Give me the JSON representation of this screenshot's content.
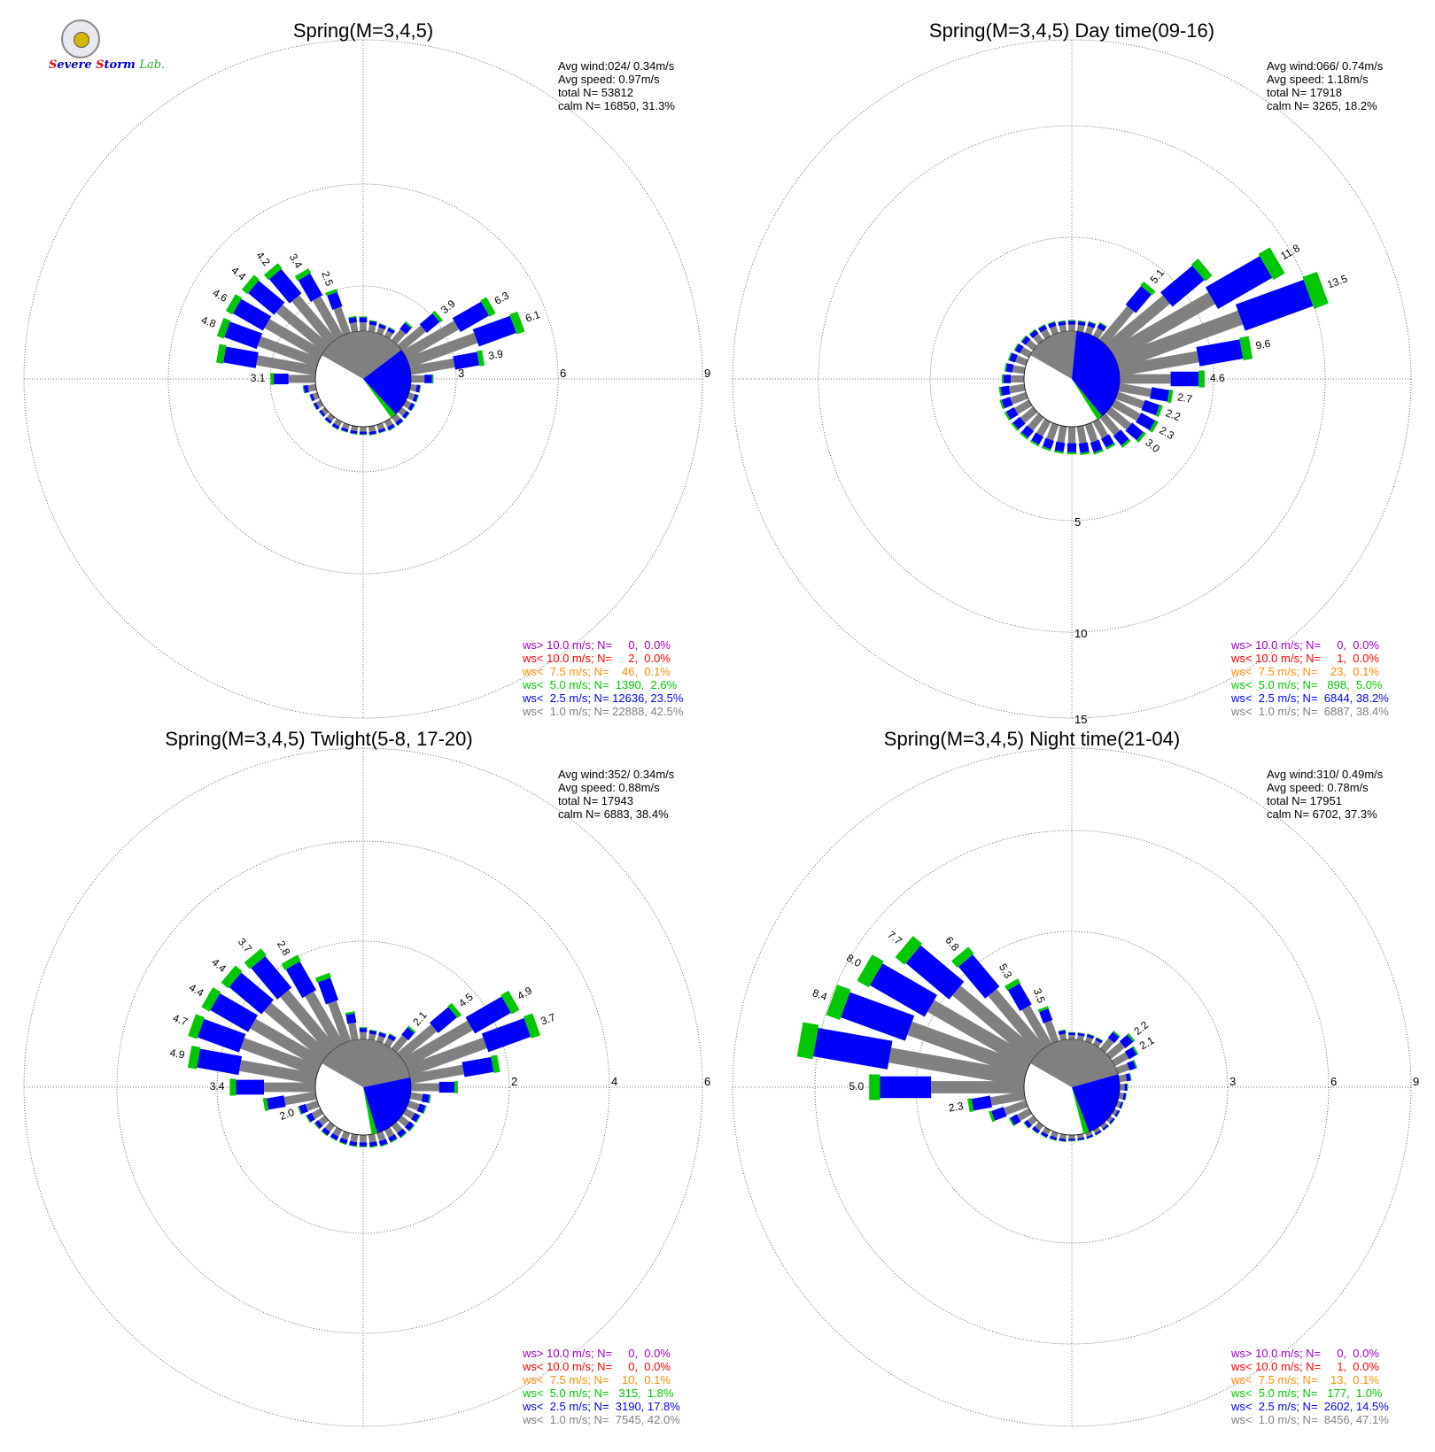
{
  "logo": {
    "lettering": "Severe Storm Lab."
  },
  "colors": {
    "calm": "#808080",
    "lt1": "#808080",
    "lt25": "#0000ff",
    "lt5": "#00c800",
    "lt75": "#ff8c00",
    "lt10": "#ff0000",
    "gt10": "#a000c8",
    "grid": "#444444"
  },
  "chart_data": [
    {
      "type": "polar-bar",
      "title": "Spring(M=3,4,5)",
      "stats": [
        "Avg wind:024/ 0.34m/s",
        "Avg speed: 0.97m/s",
        "total N=      53812",
        "calm N=  16850,  31.3%"
      ],
      "ring_labels": [
        "3",
        "6",
        "9"
      ],
      "legend": [
        {
          "text": "ws> 10.0 m/s; N=     0,  0.0%",
          "color": "#a000c8"
        },
        {
          "text": "ws< 10.0 m/s; N=     2,  0.0%",
          "color": "#ff0000"
        },
        {
          "text": "ws<  7.5 m/s; N=    46,  0.1%",
          "color": "#ff8c00"
        },
        {
          "text": "ws<  5.0 m/s; N=  1390,  2.6%",
          "color": "#00c800"
        },
        {
          "text": "ws<  2.5 m/s; N= 12636, 23.5%",
          "color": "#0000ff"
        },
        {
          "text": "ws<  1.0 m/s; N= 22888, 42.5%",
          "color": "#808080"
        }
      ],
      "bar_labels": [
        {
          "dir": 60,
          "text": "6.3"
        },
        {
          "dir": 70,
          "text": "6.1"
        },
        {
          "dir": 80,
          "text": "3.9"
        },
        {
          "dir": 50,
          "text": "3.9"
        },
        {
          "dir": 270,
          "text": "3.1"
        },
        {
          "dir": 290,
          "text": "4.8"
        },
        {
          "dir": 300,
          "text": "4.6"
        },
        {
          "dir": 310,
          "text": "4.4"
        },
        {
          "dir": 320,
          "text": "4.2"
        },
        {
          "dir": 330,
          "text": "3.4"
        },
        {
          "dir": 340,
          "text": "2.5"
        }
      ]
    },
    {
      "type": "polar-bar",
      "title": "Spring(M=3,4,5) Day time(09-16)",
      "stats": [
        "Avg wind:066/ 0.74m/s",
        "Avg speed: 1.18m/s",
        "total N=      17918",
        "calm N=   3265,  18.2%"
      ],
      "ring_labels": [
        "5",
        "10",
        "15"
      ],
      "legend": [
        {
          "text": "ws> 10.0 m/s; N=     0,  0.0%",
          "color": "#a000c8"
        },
        {
          "text": "ws< 10.0 m/s; N=     1,  0.0%",
          "color": "#ff0000"
        },
        {
          "text": "ws<  7.5 m/s; N=    23,  0.1%",
          "color": "#ff8c00"
        },
        {
          "text": "ws<  5.0 m/s; N=   898,  5.0%",
          "color": "#00c800"
        },
        {
          "text": "ws<  2.5 m/s; N=  6844, 38.2%",
          "color": "#0000ff"
        },
        {
          "text": "ws<  1.0 m/s; N=  6887, 38.4%",
          "color": "#808080"
        }
      ],
      "bar_labels": [
        {
          "dir": 60,
          "text": "11.8"
        },
        {
          "dir": 70,
          "text": "13.5"
        },
        {
          "dir": 80,
          "text": "9.6"
        },
        {
          "dir": 40,
          "text": "5.1"
        },
        {
          "dir": 90,
          "text": "4.6"
        },
        {
          "dir": 100,
          "text": "2.7"
        },
        {
          "dir": 110,
          "text": "2.2"
        },
        {
          "dir": 120,
          "text": "2.3"
        },
        {
          "dir": 130,
          "text": "3.0"
        }
      ]
    },
    {
      "type": "polar-bar",
      "title": "Spring(M=3,4,5) Twlight(5-8, 17-20)",
      "stats": [
        "Avg wind:352/ 0.34m/s",
        "Avg speed: 0.88m/s",
        "total N=      17943",
        "calm N=   6883,  38.4%"
      ],
      "ring_labels": [
        "2",
        "4",
        "6"
      ],
      "legend": [
        {
          "text": "ws> 10.0 m/s; N=     0,  0.0%",
          "color": "#a000c8"
        },
        {
          "text": "ws< 10.0 m/s; N=     0,  0.0%",
          "color": "#ff0000"
        },
        {
          "text": "ws<  7.5 m/s; N=    10,  0.1%",
          "color": "#ff8c00"
        },
        {
          "text": "ws<  5.0 m/s; N=   315,  1.8%",
          "color": "#00c800"
        },
        {
          "text": "ws<  2.5 m/s; N=  3190, 17.8%",
          "color": "#0000ff"
        },
        {
          "text": "ws<  1.0 m/s; N=  7545, 42.0%",
          "color": "#808080"
        }
      ],
      "bar_labels": [
        {
          "dir": 50,
          "text": "4.5"
        },
        {
          "dir": 60,
          "text": "4.9"
        },
        {
          "dir": 70,
          "text": "3.7"
        },
        {
          "dir": 40,
          "text": "2.1"
        },
        {
          "dir": 250,
          "text": "2.0"
        },
        {
          "dir": 270,
          "text": "3.4"
        },
        {
          "dir": 280,
          "text": "4.9"
        },
        {
          "dir": 290,
          "text": "4.7"
        },
        {
          "dir": 300,
          "text": "4.4"
        },
        {
          "dir": 310,
          "text": "4.4"
        },
        {
          "dir": 320,
          "text": "3.7"
        },
        {
          "dir": 330,
          "text": "2.8"
        }
      ]
    },
    {
      "type": "polar-bar",
      "title": "Spring(M=3,4,5) Night time(21-04)",
      "stats": [
        "Avg wind:310/ 0.49m/s",
        "Avg speed: 0.78m/s",
        "total N=      17951",
        "calm N=   6702,  37.3%"
      ],
      "ring_labels": [
        "3",
        "6",
        "9"
      ],
      "legend": [
        {
          "text": "ws> 10.0 m/s; N=     0,  0.0%",
          "color": "#a000c8"
        },
        {
          "text": "ws< 10.0 m/s; N=     1,  0.0%",
          "color": "#ff0000"
        },
        {
          "text": "ws<  7.5 m/s; N=    13,  0.1%",
          "color": "#ff8c00"
        },
        {
          "text": "ws<  5.0 m/s; N=   177,  1.0%",
          "color": "#00c800"
        },
        {
          "text": "ws<  2.5 m/s; N=  2602, 14.5%",
          "color": "#0000ff"
        },
        {
          "text": "ws<  1.0 m/s; N=  8456, 47.1%",
          "color": "#808080"
        }
      ],
      "bar_labels": [
        {
          "dir": 50,
          "text": "2.2"
        },
        {
          "dir": 60,
          "text": "2.1"
        },
        {
          "dir": 260,
          "text": "2.3"
        },
        {
          "dir": 270,
          "text": "5.0"
        },
        {
          "dir": 290,
          "text": "8.4"
        },
        {
          "dir": 300,
          "text": "8.0"
        },
        {
          "dir": 310,
          "text": "7.7"
        },
        {
          "dir": 320,
          "text": "6.8"
        },
        {
          "dir": 330,
          "text": "5.3"
        },
        {
          "dir": 340,
          "text": "3.5"
        }
      ]
    }
  ]
}
